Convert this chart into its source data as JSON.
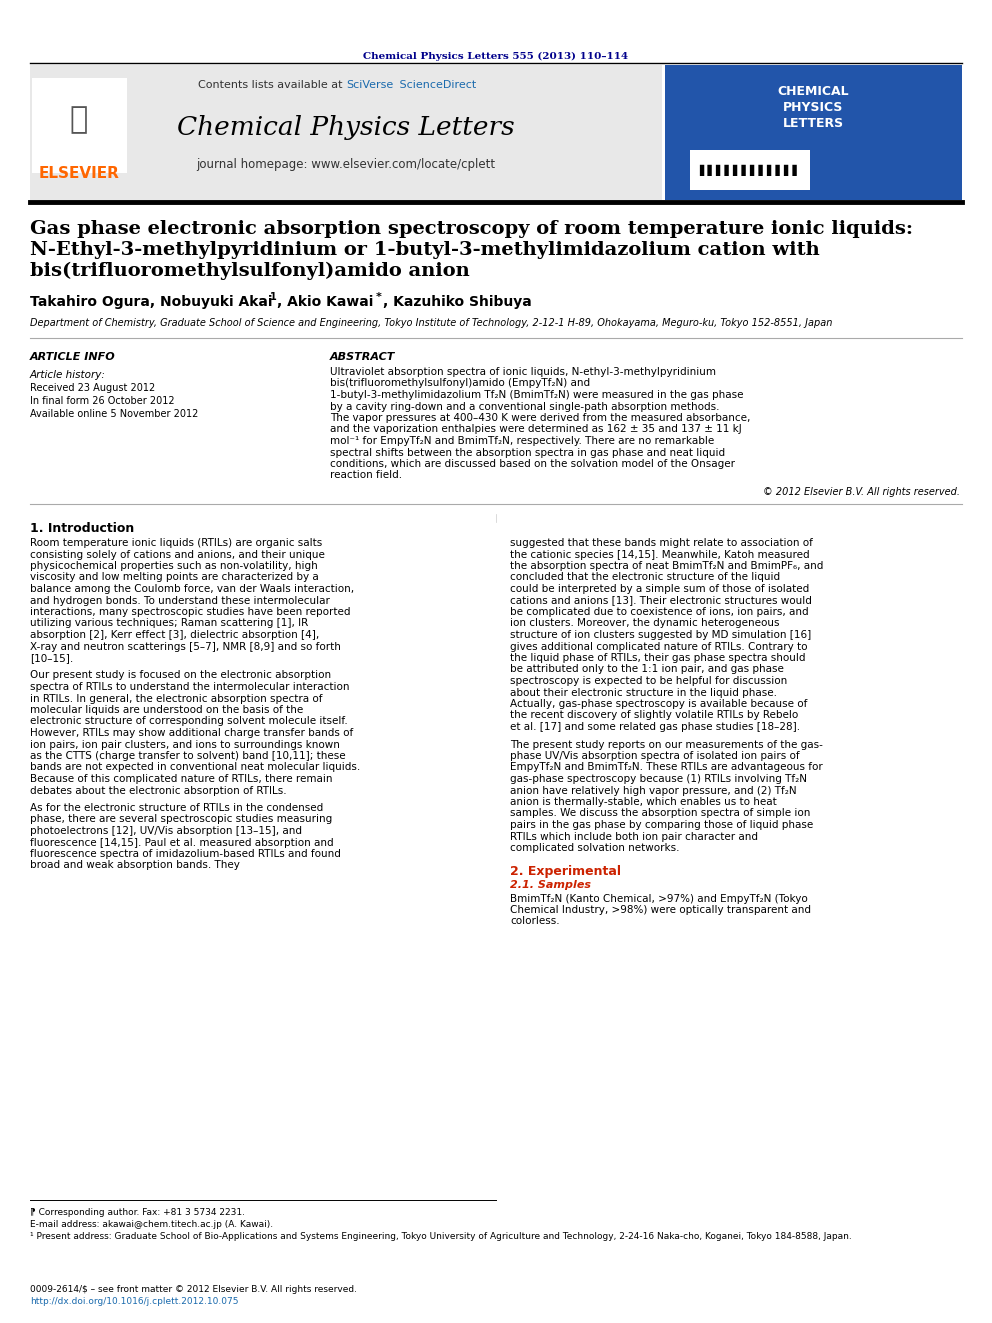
{
  "journal_ref": "Chemical Physics Letters 555 (2013) 110–114",
  "journal_ref_color": "#00008B",
  "contents_line": "Contents lists available at SciVerse ScienceDirect",
  "sciverse_color": "#1a6aad",
  "journal_title": "Chemical Physics Letters",
  "journal_homepage": "journal homepage: www.elsevier.com/locate/cplett",
  "elsevier_color": "#FF6600",
  "paper_title_line1": "Gas phase electronic absorption spectroscopy of room temperature ionic liquids:",
  "paper_title_line2": "N-Ethyl-3-methylpyridinium or 1-butyl-3-methylimidazolium cation with",
  "paper_title_line3": "bis(trifluoromethylsulfonyl)amido anion",
  "authors": "Takahiro Ogura, Nobuyuki Akai¹, Akio Kawai*, Kazuhiko Shibuya",
  "affiliation": "Department of Chemistry, Graduate School of Science and Engineering, Tokyo Institute of Technology, 2-12-1 H-89, Ohokayama, Meguro-ku, Tokyo 152-8551, Japan",
  "article_info_header": "ARTICLE INFO",
  "article_history_header": "Article history:",
  "received": "Received 23 August 2012",
  "revised": "In final form 26 October 2012",
  "available": "Available online 5 November 2012",
  "abstract_header": "ABSTRACT",
  "abstract_text": "Ultraviolet absorption spectra of ionic liquids, N-ethyl-3-methylpyridinium bis(trifluoromethylsulfonyl)amido (EmpyTf₂N) and 1-butyl-3-methylimidazolium Tf₂N (BmimTf₂N) were measured in the gas phase by a cavity ring-down and a conventional single-path absorption methods. The vapor pressures at 400–430 K were derived from the measured absorbance, and the vaporization enthalpies were determined as 162 ± 35 and 137 ± 11 kJ mol⁻¹ for EmpyTf₂N and BmimTf₂N, respectively. There are no remarkable spectral shifts between the absorption spectra in gas phase and neat liquid conditions, which are discussed based on the solvation model of the Onsager reaction field.",
  "copyright": "© 2012 Elsevier B.V. All rights reserved.",
  "intro_header": "1. Introduction",
  "intro_text1": "Room temperature ionic liquids (RTILs) are organic salts consisting solely of cations and anions, and their unique physicochemical properties such as non-volatility, high viscosity and low melting points are characterized by a balance among the Coulomb force, van der Waals interaction, and hydrogen bonds. To understand these intermolecular interactions, many spectroscopic studies have been reported utilizing various techniques; Raman scattering [1], IR absorption [2], Kerr effect [3], dielectric absorption [4], X-ray and neutron scatterings [5–7], NMR [8,9] and so forth [10–15].",
  "intro_text2": "Our present study is focused on the electronic absorption spectra of RTILs to understand the intermolecular interaction in RTILs. In general, the electronic absorption spectra of molecular liquids are understood on the basis of the electronic structure of corresponding solvent molecule itself. However, RTILs may show additional charge transfer bands of ion pairs, ion pair clusters, and ions to surroundings known as the CTTS (charge transfer to solvent) band [10,11]; these bands are not expected in conventional neat molecular liquids. Because of this complicated nature of RTILs, there remain debates about the electronic absorption of RTILs.",
  "intro_text3": "As for the electronic structure of RTILs in the condensed phase, there are several spectroscopic studies measuring photoelectrons [12], UV/Vis absorption [13–15], and fluorescence [14,15]. Paul et al. measured absorption and fluorescence spectra of imidazolium-based RTILs and found broad and weak absorption bands. They",
  "right_text1": "suggested that these bands might relate to association of the cationic species [14,15]. Meanwhile, Katoh measured the absorption spectra of neat BmimTf₂N and BmimPF₆, and concluded that the electronic structure of the liquid could be interpreted by a simple sum of those of isolated cations and anions [13]. Their electronic structures would be complicated due to coexistence of ions, ion pairs, and ion clusters. Moreover, the dynamic heterogeneous structure of ion clusters suggested by MD simulation [16] gives additional complicated nature of RTILs. Contrary to the liquid phase of RTILs, their gas phase spectra should be attributed only to the 1:1 ion pair, and gas phase spectroscopy is expected to be helpful for discussion about their electronic structure in the liquid phase. Actually, gas-phase spectroscopy is available because of the recent discovery of slightly volatile RTILs by Rebelo et al. [17] and some related gas phase studies [18–28].",
  "right_text2": "The present study reports on our measurements of the gas-phase UV/Vis absorption spectra of isolated ion pairs of EmpyTf₂N and BmimTf₂N. These RTILs are advantageous for gas-phase spectroscopy because (1) RTILs involving Tf₂N anion have relatively high vapor pressure, and (2) Tf₂N anion is thermally-stable, which enables us to heat samples. We discuss the absorption spectra of simple ion pairs in the gas phase by comparing those of liquid phase RTILs which include both ion pair character and complicated solvation networks.",
  "section2_header": "2. Experimental",
  "section21_header": "2.1. Samples",
  "section21_text": "BmimTf₂N (Kanto Chemical, >97%) and EmpyTf₂N (Tokyo Chemical Industry, >98%) were optically transparent and colorless.",
  "footnote1": "⁋ Corresponding author. Fax: +81 3 5734 2231.",
  "footnote2": "E-mail address: akawai@chem.titech.ac.jp (A. Kawai).",
  "footnote3": "¹ Present address: Graduate School of Bio-Applications and Systems Engineering, Tokyo University of Agriculture and Technology, 2-24-16 Naka-cho, Koganei, Tokyo 184-8588, Japan.",
  "bottom_ref": "0009-2614/$ – see front matter © 2012 Elsevier B.V. All rights reserved.",
  "bottom_doi": "http://dx.doi.org/10.1016/j.cplett.2012.10.075",
  "doi_color": "#1a6aad",
  "background_color": "#ffffff",
  "header_bg": "#f0f0f0",
  "section_color": "#cc2200"
}
